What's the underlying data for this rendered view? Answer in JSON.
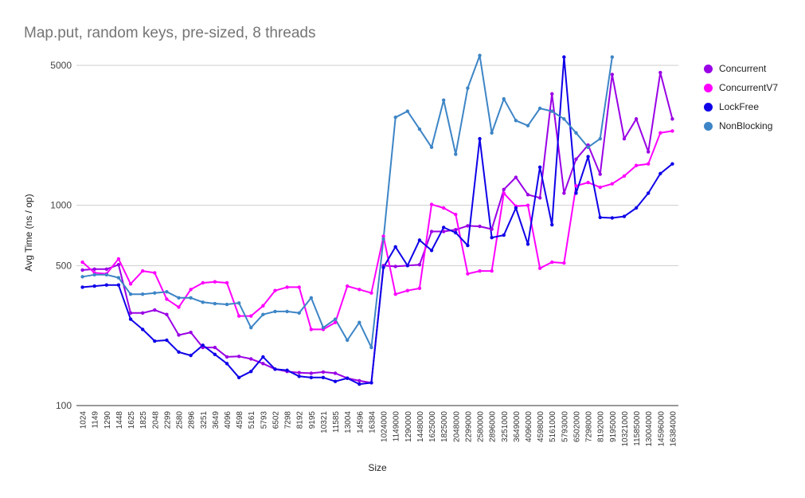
{
  "chart_data": {
    "type": "line",
    "title": "Map.put, random keys, pre-sized, 8 threads",
    "xlabel": "Size",
    "ylabel": "Avg Time (ns / op)",
    "yscale": "log",
    "ylim": [
      100,
      5000
    ],
    "yticks": [
      100,
      500,
      1000,
      5000
    ],
    "grid": true,
    "legend_position": "right",
    "categories": [
      "1024",
      "1149",
      "1290",
      "1448",
      "1625",
      "1825",
      "2048",
      "2299",
      "2580",
      "2896",
      "3251",
      "3649",
      "4096",
      "4598",
      "5161",
      "5793",
      "6502",
      "7298",
      "8192",
      "9195",
      "10321",
      "11585",
      "13004",
      "14596",
      "16384",
      "1024000",
      "1149000",
      "1290000",
      "1448000",
      "1625000",
      "1825000",
      "2048000",
      "2299000",
      "2580000",
      "2896000",
      "3251000",
      "3649000",
      "4096000",
      "4598000",
      "5161000",
      "5793000",
      "6502000",
      "7298000",
      "8192000",
      "9195000",
      "10321000",
      "11585000",
      "13004000",
      "14596000",
      "16384000"
    ],
    "series": [
      {
        "name": "Concurrent",
        "color": "#9A00E5",
        "values": [
          475,
          480,
          480,
          505,
          290,
          290,
          300,
          285,
          225,
          232,
          195,
          195,
          175,
          176,
          171,
          162,
          152,
          148,
          146,
          145,
          147,
          145,
          137,
          133,
          130,
          500,
          495,
          500,
          505,
          740,
          740,
          755,
          790,
          785,
          760,
          1200,
          1380,
          1130,
          1090,
          3600,
          1150,
          1700,
          2000,
          1430,
          4500,
          2150,
          2700,
          1850,
          4600,
          2700
        ]
      },
      {
        "name": "ConcurrentV7",
        "color": "#FF00FF",
        "values": [
          520,
          460,
          455,
          540,
          405,
          470,
          460,
          340,
          310,
          380,
          410,
          415,
          410,
          280,
          280,
          315,
          375,
          390,
          390,
          240,
          240,
          260,
          395,
          380,
          365,
          700,
          360,
          375,
          385,
          1010,
          970,
          900,
          455,
          470,
          470,
          1150,
          990,
          1000,
          485,
          520,
          515,
          1250,
          1300,
          1230,
          1280,
          1400,
          1580,
          1610,
          2300,
          2350
        ]
      },
      {
        "name": "LockFree",
        "color": "#0F00E8",
        "values": [
          390,
          395,
          400,
          400,
          270,
          240,
          210,
          212,
          185,
          178,
          200,
          180,
          162,
          138,
          148,
          175,
          152,
          150,
          140,
          138,
          138,
          132,
          137,
          128,
          130,
          490,
          620,
          500,
          670,
          595,
          775,
          730,
          630,
          2150,
          690,
          710,
          970,
          640,
          1550,
          800,
          5500,
          1150,
          1750,
          870,
          865,
          880,
          970,
          1150,
          1440,
          1610
        ]
      },
      {
        "name": "NonBlocking",
        "color": "#3D85C6",
        "values": [
          440,
          450,
          450,
          435,
          360,
          360,
          365,
          370,
          345,
          345,
          328,
          323,
          320,
          325,
          245,
          285,
          295,
          295,
          290,
          345,
          245,
          270,
          212,
          260,
          195,
          680,
          2750,
          2950,
          2400,
          1950,
          3350,
          1800,
          3850,
          5600,
          2300,
          3400,
          2650,
          2500,
          3050,
          2950,
          2700,
          2300,
          1950,
          2150,
          5500,
          null,
          null,
          null,
          null,
          null
        ]
      }
    ]
  }
}
